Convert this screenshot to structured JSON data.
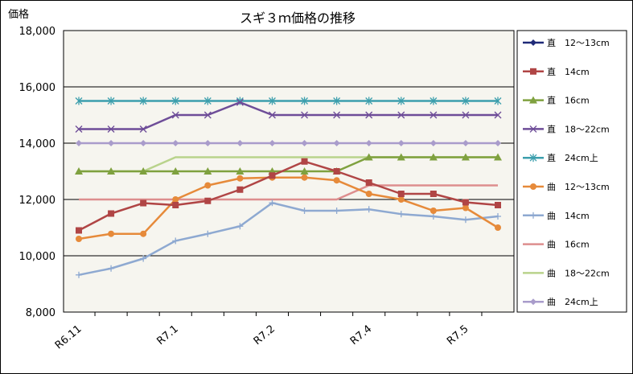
{
  "chart_data": {
    "type": "line",
    "title": "スギ３ｍ価格の推移",
    "ylabel": "価格",
    "xlabel": "",
    "ylim": [
      8000,
      18000
    ],
    "yticks": [
      "8,000",
      "10,000",
      "12,000",
      "14,000",
      "16,000",
      "18,000"
    ],
    "ytick_values": [
      8000,
      10000,
      12000,
      14000,
      16000,
      18000
    ],
    "x_tick_labels": [
      {
        "label": "R6.11",
        "index": 0
      },
      {
        "label": "R7.1",
        "index": 3
      },
      {
        "label": "R7.2",
        "index": 6
      },
      {
        "label": "R7.4",
        "index": 9
      },
      {
        "label": "R7.5",
        "index": 12
      }
    ],
    "point_count": 14,
    "grid": true,
    "legend_position": "right",
    "plot_background": "#f6f5ef",
    "series": [
      {
        "name": "直　12～13cm",
        "color": "#1f2a78",
        "marker": "diamond",
        "values": [
          null,
          null,
          null,
          null,
          null,
          null,
          null,
          null,
          null,
          null,
          null,
          null,
          null,
          null
        ]
      },
      {
        "name": "直　14cm",
        "color": "#b04545",
        "marker": "square",
        "values": [
          10900,
          11500,
          11870,
          11800,
          11950,
          12350,
          12850,
          13350,
          13000,
          12600,
          12200,
          12200,
          11900,
          11800
        ]
      },
      {
        "name": "直　16cm",
        "color": "#7fa13f",
        "marker": "triangle",
        "values": [
          13000,
          13000,
          13000,
          13000,
          13000,
          13000,
          13000,
          13000,
          13000,
          13500,
          13500,
          13500,
          13500,
          13500
        ]
      },
      {
        "name": "直　18～22cm",
        "color": "#6e4d98",
        "marker": "x",
        "values": [
          14500,
          14500,
          14500,
          15000,
          15000,
          15450,
          15000,
          15000,
          15000,
          15000,
          15000,
          15000,
          15000,
          15000
        ]
      },
      {
        "name": "直　24cm上",
        "color": "#3c9fad",
        "marker": "star",
        "values": [
          15500,
          15500,
          15500,
          15500,
          15500,
          15500,
          15500,
          15500,
          15500,
          15500,
          15500,
          15500,
          15500,
          15500
        ]
      },
      {
        "name": "曲　12～13cm",
        "color": "#e68a3a",
        "marker": "circle",
        "values": [
          10600,
          10780,
          10780,
          12000,
          12500,
          12750,
          12780,
          12780,
          12680,
          12200,
          12000,
          11600,
          11700,
          11000
        ]
      },
      {
        "name": "曲　14cm",
        "color": "#8ea9d1",
        "marker": "plus",
        "values": [
          9320,
          9550,
          9900,
          10530,
          10780,
          11050,
          11880,
          11600,
          11600,
          11650,
          11480,
          11400,
          11280,
          11400
        ]
      },
      {
        "name": "曲　16cm",
        "color": "#dd8e8e",
        "marker": "none",
        "values": [
          12000,
          12000,
          12000,
          12000,
          12000,
          12000,
          12000,
          12000,
          12000,
          12500,
          12500,
          12500,
          12500,
          12500
        ]
      },
      {
        "name": "曲　18～22cm",
        "color": "#b9d38c",
        "marker": "none",
        "values": [
          13000,
          13000,
          13000,
          13500,
          13500,
          13500,
          13500,
          13500,
          13500,
          13500,
          13500,
          13500,
          13500,
          13500
        ]
      },
      {
        "name": "曲　24cm上",
        "color": "#a99ccb",
        "marker": "diamond",
        "values": [
          14000,
          14000,
          14000,
          14000,
          14000,
          14000,
          14000,
          14000,
          14000,
          14000,
          14000,
          14000,
          14000,
          14000
        ]
      }
    ]
  }
}
